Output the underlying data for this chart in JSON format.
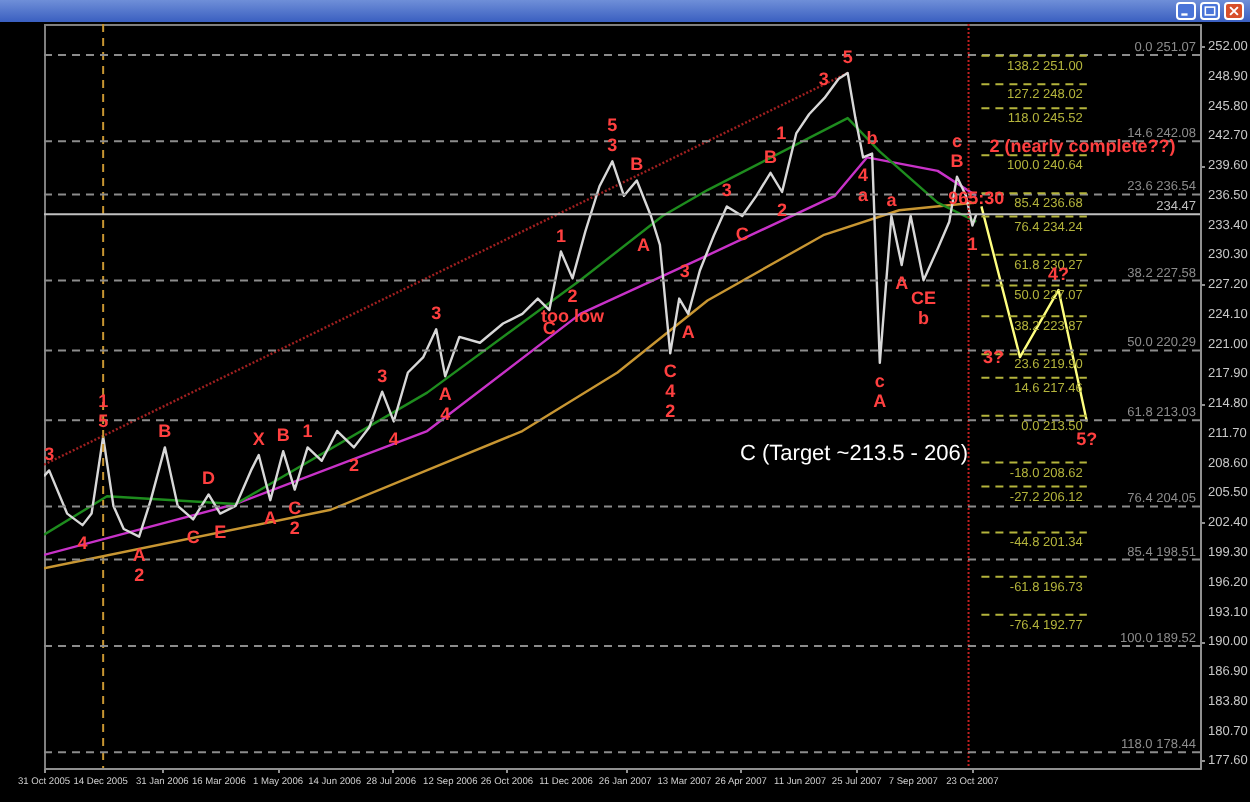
{
  "chart_data": {
    "type": "line",
    "xlim": [
      "2005-10-31",
      "2008-04-17"
    ],
    "ylim": [
      176.8,
      254.3
    ],
    "xticks": [
      {
        "value": "2005-10-31",
        "label": "31 Oct 2005"
      },
      {
        "value": "2005-12-14",
        "label": "14 Dec 2005"
      },
      {
        "value": "2006-01-31",
        "label": "31 Jan 2006"
      },
      {
        "value": "2006-03-16",
        "label": "16 Mar 2006"
      },
      {
        "value": "2006-05-01",
        "label": "1 May 2006"
      },
      {
        "value": "2006-06-14",
        "label": "14 Jun 2006"
      },
      {
        "value": "2006-07-28",
        "label": "28 Jul 2006"
      },
      {
        "value": "2006-09-12",
        "label": "12 Sep 2006"
      },
      {
        "value": "2006-10-26",
        "label": "26 Oct 2006"
      },
      {
        "value": "2006-12-11",
        "label": "11 Dec 2006"
      },
      {
        "value": "2007-01-26",
        "label": "26 Jan 2007"
      },
      {
        "value": "2007-03-13",
        "label": "13 Mar 2007"
      },
      {
        "value": "2007-04-26",
        "label": "26 Apr 2007"
      },
      {
        "value": "2007-06-11",
        "label": "11 Jun 2007"
      },
      {
        "value": "2007-07-25",
        "label": "25 Jul 2007"
      },
      {
        "value": "2007-09-07",
        "label": "7 Sep 2007"
      },
      {
        "value": "2007-10-23",
        "label": "23 Oct 2007"
      }
    ],
    "yticks": [
      {
        "value": 177.6,
        "label": "177.60"
      },
      {
        "value": 180.7,
        "label": "180.70"
      },
      {
        "value": 183.8,
        "label": "183.80"
      },
      {
        "value": 186.9,
        "label": "186.90"
      },
      {
        "value": 190,
        "label": "190.00"
      },
      {
        "value": 193.1,
        "label": "193.10"
      },
      {
        "value": 196.2,
        "label": "196.20"
      },
      {
        "value": 199.3,
        "label": "199.30"
      },
      {
        "value": 202.4,
        "label": "202.40"
      },
      {
        "value": 205.5,
        "label": "205.50"
      },
      {
        "value": 208.6,
        "label": "208.60"
      },
      {
        "value": 211.7,
        "label": "211.70"
      },
      {
        "value": 214.8,
        "label": "214.80"
      },
      {
        "value": 217.9,
        "label": "217.90"
      },
      {
        "value": 221,
        "label": "221.00"
      },
      {
        "value": 224.1,
        "label": "224.10"
      },
      {
        "value": 227.2,
        "label": "227.20"
      },
      {
        "value": 230.3,
        "label": "230.30"
      },
      {
        "value": 233.4,
        "label": "233.40"
      },
      {
        "value": 236.5,
        "label": "236.50"
      },
      {
        "value": 239.6,
        "label": "239.60"
      },
      {
        "value": 242.7,
        "label": "242.70"
      },
      {
        "value": 245.8,
        "label": "245.80"
      },
      {
        "value": 248.9,
        "label": "248.90"
      },
      {
        "value": 252,
        "label": "252.00"
      }
    ],
    "series": [
      {
        "color": "#a02020",
        "line_style": "dotted",
        "x": [
          "2005-10-31",
          "2007-07-18"
        ],
        "values": [
          208.4,
          249.2
        ]
      },
      {
        "color": "#c89632",
        "x": [
          "2005-10-31",
          "2006-06-11",
          "2006-11-07",
          "2007-01-20",
          "2007-03-31",
          "2007-06-29",
          "2007-08-27",
          "2007-10-26"
        ],
        "values": [
          197.6,
          203.7,
          211.9,
          218.0,
          225.5,
          232.3,
          234.9,
          235.7
        ]
      },
      {
        "color": "#c832c8",
        "x": [
          "2005-10-31",
          "2006-03-29",
          "2006-08-25",
          "2006-12-22",
          "2007-03-31",
          "2007-07-08",
          "2007-08-02",
          "2007-09-26",
          "2007-10-26"
        ],
        "values": [
          199.0,
          204.3,
          211.9,
          224.1,
          230.2,
          236.4,
          240.4,
          239.0,
          236.4
        ]
      },
      {
        "color": "#1e8c1e",
        "x": [
          "2005-10-31",
          "2005-12-19",
          "2006-03-29",
          "2006-08-25",
          "2006-12-22",
          "2007-02-24",
          "2007-03-31",
          "2007-07-18",
          "2007-08-12",
          "2007-09-26",
          "2007-10-26"
        ],
        "values": [
          201.1,
          205.1,
          204.3,
          215.9,
          227.6,
          234.3,
          237.0,
          244.5,
          241.0,
          235.7,
          233.7
        ]
      },
      {
        "color": "#d8d8d8",
        "x": [
          "2005-10-31",
          "2005-11-04",
          "2005-11-18",
          "2005-11-30",
          "2005-12-07",
          "2005-12-16",
          "2005-12-24",
          "2006-01-01",
          "2006-01-13",
          "2006-01-22",
          "2006-02-02",
          "2006-02-12",
          "2006-02-24",
          "2006-03-08",
          "2006-03-17",
          "2006-03-29",
          "2006-04-10",
          "2006-04-16",
          "2006-04-25",
          "2006-05-05",
          "2006-05-14",
          "2006-05-24",
          "2006-06-04",
          "2006-06-16",
          "2006-06-29",
          "2006-07-11",
          "2006-07-21",
          "2006-07-30",
          "2006-08-10",
          "2006-08-22",
          "2006-09-01",
          "2006-09-08",
          "2006-09-19",
          "2006-10-05",
          "2006-10-23",
          "2006-11-07",
          "2006-11-19",
          "2006-11-28",
          "2006-12-07",
          "2006-12-16",
          "2006-12-26",
          "2007-01-06",
          "2007-01-16",
          "2007-01-25",
          "2007-02-04",
          "2007-02-15",
          "2007-02-22",
          "2007-03-02",
          "2007-03-09",
          "2007-03-16",
          "2007-03-25",
          "2007-04-05",
          "2007-04-15",
          "2007-04-27",
          "2007-05-08",
          "2007-05-19",
          "2007-05-28",
          "2007-06-08",
          "2007-06-18",
          "2007-06-30",
          "2007-07-11",
          "2007-07-18",
          "2007-07-24",
          "2007-07-30",
          "2007-08-06",
          "2007-08-12",
          "2007-08-21",
          "2007-08-29",
          "2007-09-05",
          "2007-09-15",
          "2007-09-26",
          "2007-10-05",
          "2007-10-11",
          "2007-10-18",
          "2007-10-23",
          "2007-10-26"
        ],
        "values": [
          207.2,
          207.8,
          203.3,
          202.1,
          203.3,
          211.3,
          204.1,
          201.7,
          200.9,
          204.7,
          210.2,
          204.1,
          202.7,
          205.3,
          203.3,
          204.1,
          207.8,
          209.4,
          204.7,
          209.8,
          205.8,
          210.2,
          208.8,
          211.9,
          210.2,
          212.3,
          216.0,
          212.9,
          218.0,
          219.6,
          222.5,
          217.6,
          221.7,
          221.1,
          223.1,
          224.1,
          225.7,
          224.5,
          230.6,
          227.8,
          232.7,
          237.4,
          240.0,
          236.4,
          238.0,
          234.3,
          231.3,
          220.0,
          225.7,
          224.1,
          228.6,
          232.3,
          235.3,
          234.3,
          236.4,
          238.8,
          236.8,
          242.9,
          244.9,
          246.6,
          248.6,
          249.2,
          244.5,
          240.4,
          240.8,
          219.0,
          234.3,
          229.2,
          234.3,
          227.6,
          230.9,
          233.7,
          238.4,
          236.4,
          233.3,
          234.47
        ]
      },
      {
        "color": "#ffff80",
        "x": [
          "2007-10-30",
          "2007-11-29",
          "2007-12-29",
          "2008-01-20"
        ],
        "values": [
          235.3,
          219.6,
          226.6,
          212.9
        ]
      }
    ],
    "ref_lines": [
      {
        "axis": "x",
        "value": "2005-12-16",
        "color": "#c89632",
        "line_style": "dashed"
      },
      {
        "axis": "x",
        "value": "2007-10-20",
        "color": "#c02020",
        "line_style": "dotted"
      },
      {
        "axis": "y",
        "value": 251.07,
        "label": "0.0  251.07",
        "color": "#8c8c8c",
        "line_style": "dashed"
      },
      {
        "axis": "y",
        "value": 242.08,
        "label": "14.6  242.08",
        "color": "#8c8c8c",
        "line_style": "dashed"
      },
      {
        "axis": "y",
        "value": 236.54,
        "label": "23.6  236.54",
        "color": "#8c8c8c",
        "line_style": "dashed"
      },
      {
        "axis": "y",
        "value": 227.58,
        "label": "38.2  227.58",
        "color": "#8c8c8c",
        "line_style": "dashed"
      },
      {
        "axis": "y",
        "value": 220.29,
        "label": "50.0  220.29",
        "color": "#8c8c8c",
        "line_style": "dashed"
      },
      {
        "axis": "y",
        "value": 213.03,
        "label": "61.8  213.03",
        "color": "#8c8c8c",
        "line_style": "dashed"
      },
      {
        "axis": "y",
        "value": 204.05,
        "label": "76.4  204.05",
        "color": "#8c8c8c",
        "line_style": "dashed"
      },
      {
        "axis": "y",
        "value": 198.51,
        "label": "85.4  198.51",
        "color": "#8c8c8c",
        "line_style": "dashed"
      },
      {
        "axis": "y",
        "value": 189.52,
        "label": "100.0  189.52",
        "color": "#8c8c8c",
        "line_style": "dashed"
      },
      {
        "axis": "y",
        "value": 178.44,
        "label": "118.0  178.44",
        "color": "#8c8c8c",
        "line_style": "dashed"
      },
      {
        "axis": "y",
        "value": 234.47,
        "label": "234.47",
        "color": "#c0c0c0",
        "line_style": "solid"
      },
      {
        "axis": "y",
        "value": 251.0,
        "label": "138.2  251.00",
        "color": "#b4b43c",
        "line_style": "dashed"
      },
      {
        "axis": "y",
        "value": 248.02,
        "label": "127.2  248.02",
        "color": "#b4b43c",
        "line_style": "dashed"
      },
      {
        "axis": "y",
        "value": 245.52,
        "label": "118.0  245.52",
        "color": "#b4b43c",
        "line_style": "dashed"
      },
      {
        "axis": "y",
        "value": 240.64,
        "label": "100.0  240.64",
        "color": "#b4b43c",
        "line_style": "dashed"
      },
      {
        "axis": "y",
        "value": 236.68,
        "label": "85.4  236.68",
        "color": "#b4b43c",
        "line_style": "dashed"
      },
      {
        "axis": "y",
        "value": 234.24,
        "label": "76.4  234.24",
        "color": "#b4b43c",
        "line_style": "dashed"
      },
      {
        "axis": "y",
        "value": 230.27,
        "label": "61.8  230.27",
        "color": "#b4b43c",
        "line_style": "dashed"
      },
      {
        "axis": "y",
        "value": 227.07,
        "label": "50.0  227.07",
        "color": "#b4b43c",
        "line_style": "dashed"
      },
      {
        "axis": "y",
        "value": 223.87,
        "label": "38.2  223.87",
        "color": "#b4b43c",
        "line_style": "dashed"
      },
      {
        "axis": "y",
        "value": 219.9,
        "label": "23.6  219.90",
        "color": "#b4b43c",
        "line_style": "dashed"
      },
      {
        "axis": "y",
        "value": 217.46,
        "label": "14.6  217.46",
        "color": "#b4b43c",
        "line_style": "dashed"
      },
      {
        "axis": "y",
        "value": 213.5,
        "label": "0.0  213.50",
        "color": "#b4b43c",
        "line_style": "dashed"
      },
      {
        "axis": "y",
        "value": 208.62,
        "label": "-18.0  208.62",
        "color": "#b4b43c",
        "line_style": "dashed"
      },
      {
        "axis": "y",
        "value": 206.12,
        "label": "-27.2  206.12",
        "color": "#b4b43c",
        "line_style": "dashed"
      },
      {
        "axis": "y",
        "value": 201.34,
        "label": "-44.8  201.34",
        "color": "#b4b43c",
        "line_style": "dashed"
      },
      {
        "axis": "y",
        "value": 196.73,
        "label": "-61.8  196.73",
        "color": "#b4b43c",
        "line_style": "dashed"
      },
      {
        "axis": "y",
        "value": 192.77,
        "label": "-76.4  192.77",
        "color": "#b4b43c",
        "line_style": "dashed"
      }
    ],
    "annotations": [
      {
        "text": "3",
        "x": "2005-11-04",
        "y": 207.8
      },
      {
        "text": "4",
        "x": "2005-11-30",
        "y": 202.1
      },
      {
        "text": "5",
        "x": "2005-12-16",
        "y": 211.3
      },
      {
        "text": "1",
        "x": "2005-12-16",
        "y": 211.3
      },
      {
        "text": "A",
        "x": "2006-01-13",
        "y": 200.9
      },
      {
        "text": "2",
        "x": "2006-01-13",
        "y": 200.9
      },
      {
        "text": "B",
        "x": "2006-02-02",
        "y": 210.2
      },
      {
        "text": "C",
        "x": "2006-02-24",
        "y": 202.7
      },
      {
        "text": "D",
        "x": "2006-03-08",
        "y": 205.3
      },
      {
        "text": "E",
        "x": "2006-03-17",
        "y": 203.3
      },
      {
        "text": "X",
        "x": "2006-04-16",
        "y": 209.4
      },
      {
        "text": "B",
        "x": "2006-05-05",
        "y": 209.8
      },
      {
        "text": "1",
        "x": "2006-05-24",
        "y": 210.2
      },
      {
        "text": "A",
        "x": "2006-04-25",
        "y": 204.7
      },
      {
        "text": "C",
        "x": "2006-05-14",
        "y": 205.8
      },
      {
        "text": "2",
        "x": "2006-05-14",
        "y": 205.8
      },
      {
        "text": "2",
        "x": "2006-06-29",
        "y": 210.2
      },
      {
        "text": "3",
        "x": "2006-07-21",
        "y": 216.0
      },
      {
        "text": "4",
        "x": "2006-07-30",
        "y": 212.9
      },
      {
        "text": "A",
        "x": "2006-09-08",
        "y": 217.6
      },
      {
        "text": "4",
        "x": "2006-09-08",
        "y": 217.6
      },
      {
        "text": "3",
        "x": "2006-09-01",
        "y": 222.5
      },
      {
        "text": "C",
        "x": "2006-11-28",
        "y": 224.5
      },
      {
        "text": "1",
        "x": "2006-12-07",
        "y": 230.6
      },
      {
        "text": "2",
        "x": "2006-12-16",
        "y": 227.8
      },
      {
        "text": "too low",
        "x": "2006-12-16",
        "y": 227.8
      },
      {
        "text": "3",
        "x": "2007-01-16",
        "y": 240.0
      },
      {
        "text": "5",
        "x": "2007-01-16",
        "y": 240.0
      },
      {
        "text": "B",
        "x": "2007-02-04",
        "y": 238.0
      },
      {
        "text": "A",
        "x": "2007-02-22",
        "y": 231.3
      },
      {
        "text": "C",
        "x": "2007-03-02",
        "y": 220.0
      },
      {
        "text": "4",
        "x": "2007-03-02",
        "y": 220.0
      },
      {
        "text": "2",
        "x": "2007-03-02",
        "y": 220.0
      },
      {
        "text": "3",
        "x": "2007-03-25",
        "y": 228.6
      },
      {
        "text": "A",
        "x": "2007-03-16",
        "y": 224.1
      },
      {
        "text": "3",
        "x": "2007-04-15",
        "y": 235.3
      },
      {
        "text": "B",
        "x": "2007-05-19",
        "y": 238.8
      },
      {
        "text": "C",
        "x": "2007-04-27",
        "y": 234.3
      },
      {
        "text": "1",
        "x": "2007-06-08",
        "y": 242.9
      },
      {
        "text": "2",
        "x": "2007-05-28",
        "y": 236.8
      },
      {
        "text": "3",
        "x": "2007-07-11",
        "y": 248.6
      },
      {
        "text": "4",
        "x": "2007-07-30",
        "y": 240.4
      },
      {
        "text": "5",
        "x": "2007-07-18",
        "y": 249.2
      },
      {
        "text": "a",
        "x": "2007-07-30",
        "y": 240.4
      },
      {
        "text": "b",
        "x": "2007-08-06",
        "y": 240.8
      },
      {
        "text": "a",
        "x": "2007-08-21",
        "y": 234.3
      },
      {
        "text": "c",
        "x": "2007-08-12",
        "y": 219.0
      },
      {
        "text": "A",
        "x": "2007-08-12",
        "y": 219.0
      },
      {
        "text": "A",
        "x": "2007-08-29",
        "y": 229.2
      },
      {
        "text": "CE",
        "x": "2007-09-15",
        "y": 227.6
      },
      {
        "text": "b",
        "x": "2007-09-15",
        "y": 227.6
      },
      {
        "text": "B",
        "x": "2007-10-11",
        "y": 238.4
      },
      {
        "text": "c",
        "x": "2007-10-11",
        "y": 238.4
      },
      {
        "text": "1",
        "x": "2007-10-23",
        "y": 233.3
      },
      {
        "text": "2 (nearly complete??)",
        "x": "2007-10-30",
        "y": 235.3
      },
      {
        "text": "965:30",
        "x": "2007-10-26",
        "y": 234.47
      },
      {
        "text": "4?",
        "x": "2007-12-29",
        "y": 226.6
      },
      {
        "text": "3?",
        "x": "2007-11-29",
        "y": 219.6
      },
      {
        "text": "5?",
        "x": "2008-01-20",
        "y": 212.9
      },
      "C (Target ~213.5 - 206)"
    ]
  }
}
